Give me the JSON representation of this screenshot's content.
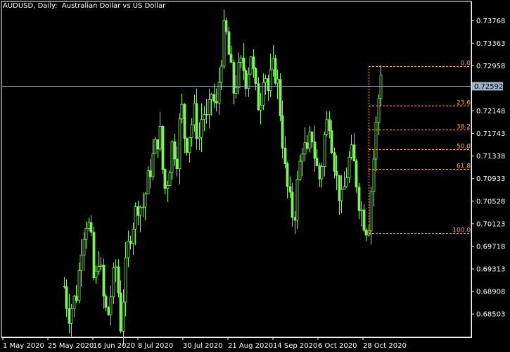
{
  "window": {
    "symbol": "AUDUSD",
    "timeframe": "Daily",
    "title": "AUDUSD, Daily:  Australian Dollar vs US Dollar"
  },
  "colors": {
    "background": "#000000",
    "frame": "#ffffff",
    "candle": "#7ef25a",
    "fibonacci": "#ffa54a",
    "current_price_line": "#9fb3c8",
    "current_price_label_bg": "#9fb3c8",
    "current_price_label_text": "#000000"
  },
  "chart_data": {
    "type": "candlestick",
    "title": "AUDUSD, Daily:  Australian Dollar vs US Dollar",
    "y_ticks": [
      "0.73768",
      "0.73363",
      "0.72958",
      "0.72148",
      "0.71743",
      "0.71338",
      "0.70933",
      "0.70528",
      "0.70123",
      "0.69718",
      "0.69313",
      "0.68908",
      "0.68503"
    ],
    "x_ticks": [
      "1 May 2020",
      "25 May 2020",
      "16 Jun 2020",
      "8 Jul 2020",
      "30 Jul 2020",
      "21 Aug 2020",
      "14 Sep 2020",
      "6 Oct 2020",
      "28 Oct 2020"
    ],
    "ylim": [
      0.681,
      0.741
    ],
    "current_price": 0.72592,
    "current_price_label": "0.72592",
    "fibonacci": {
      "high": 0.7295,
      "low": 0.6996,
      "levels": [
        {
          "label": "0.0",
          "ratio": 0.0
        },
        {
          "label": "23.6",
          "ratio": 0.236
        },
        {
          "label": "38.2",
          "ratio": 0.382
        },
        {
          "label": "50.0",
          "ratio": 0.5
        },
        {
          "label": "61.8",
          "ratio": 0.618
        },
        {
          "label": "100.0",
          "ratio": 1.0
        }
      ]
    },
    "price_path": [
      0.69,
      0.685,
      0.687,
      0.689,
      0.698,
      0.702,
      0.7,
      0.689,
      0.696,
      0.688,
      0.684,
      0.69,
      0.694,
      0.683,
      0.692,
      0.699,
      0.702,
      0.705,
      0.704,
      0.708,
      0.712,
      0.715,
      0.718,
      0.707,
      0.71,
      0.716,
      0.713,
      0.723,
      0.715,
      0.718,
      0.721,
      0.716,
      0.722,
      0.719,
      0.725,
      0.721,
      0.73,
      0.737,
      0.731,
      0.725,
      0.728,
      0.73,
      0.727,
      0.732,
      0.725,
      0.722,
      0.73,
      0.725,
      0.729,
      0.728,
      0.72,
      0.71,
      0.705,
      0.702,
      0.71,
      0.716,
      0.713,
      0.718,
      0.712,
      0.709,
      0.717,
      0.721,
      0.714,
      0.708,
      0.705,
      0.71,
      0.714,
      0.711,
      0.705,
      0.702,
      0.7,
      0.71,
      0.72,
      0.729
    ],
    "candle_count": 130
  }
}
